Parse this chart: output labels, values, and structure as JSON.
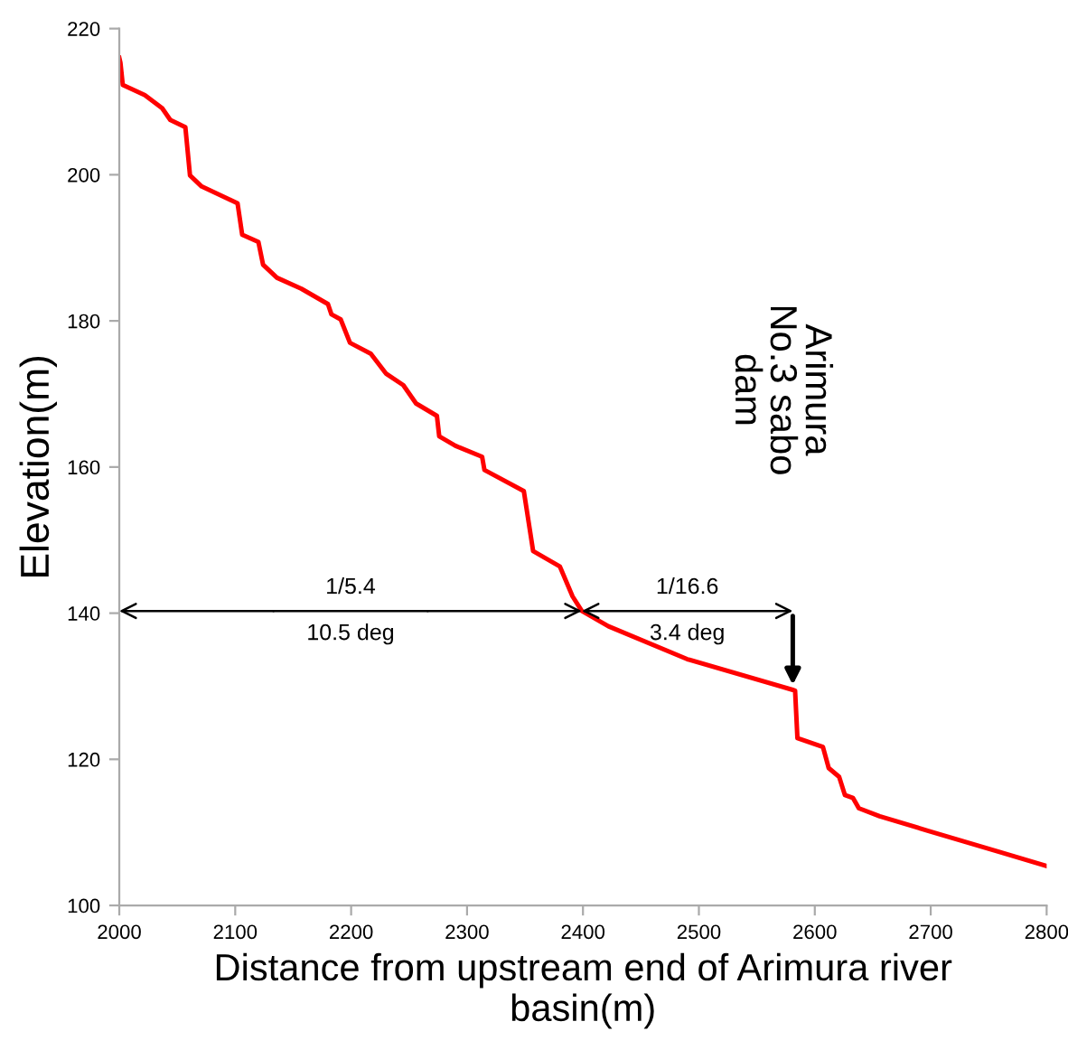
{
  "chart_data": {
    "type": "line",
    "xlabel": "Distance from upstream end of Arimura river\nbasin(m)",
    "ylabel": "Elevation(m)",
    "series": [
      {
        "color": "#ff0000",
        "x": [
          2000,
          2001,
          2003,
          2022,
          2037,
          2044,
          2057,
          2061,
          2071,
          2102,
          2106,
          2120,
          2124,
          2136,
          2157,
          2180,
          2183,
          2191,
          2199,
          2217,
          2230,
          2245,
          2256,
          2274,
          2276,
          2290,
          2313,
          2315,
          2349,
          2357,
          2380,
          2391,
          2399,
          2422,
          2490,
          2581,
          2583,
          2585,
          2607,
          2612,
          2621,
          2626,
          2633,
          2638,
          2656,
          2698,
          2760,
          2800
        ],
        "values": [
          216,
          215.3,
          212.3,
          210.9,
          209.1,
          207.5,
          206.5,
          199.9,
          198.4,
          196.1,
          191.8,
          190.8,
          187.7,
          185.9,
          184.4,
          182.3,
          180.9,
          180.2,
          177,
          175.5,
          172.8,
          171.2,
          168.7,
          167,
          164.2,
          162.9,
          161.4,
          159.6,
          156.7,
          148.5,
          146.4,
          142.3,
          140.3,
          138.2,
          133.7,
          129.5,
          129.4,
          122.9,
          121.7,
          118.8,
          117.6,
          115.1,
          114.7,
          113.3,
          112.2,
          110.2,
          107.3,
          105.4
        ]
      }
    ],
    "annotations": [
      "1/5.4",
      "10.5 deg",
      "1/16.6",
      "3.4 deg",
      "Arimura\nNo.3 sabo\ndam"
    ],
    "xlim": [
      2000,
      2800
    ],
    "xticks": [
      2000,
      2100,
      2200,
      2300,
      2400,
      2500,
      2600,
      2700,
      2800
    ],
    "ylim": [
      100,
      220
    ],
    "yticks": [
      100,
      120,
      140,
      160,
      180,
      200,
      220
    ],
    "grid": false,
    "legend": false,
    "marker": "none",
    "line_style": "solid"
  }
}
